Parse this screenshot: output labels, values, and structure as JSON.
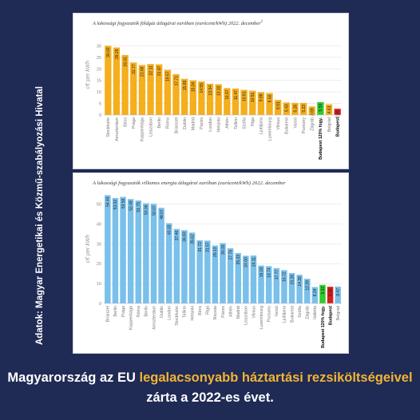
{
  "side_text": "Adatok: Magyar Energetikai és Közmű-szabályozási Hivatal",
  "caption": {
    "part1": "Magyarország az EU ",
    "highlight": "legalacsonyabb háztartási rezsiköltségeivel",
    "part2": " zárta a 2022-es évet."
  },
  "chart_data": [
    {
      "type": "bar",
      "title": "A lakossági fogyasztók földgáz átlagárai euróban (eurócent/kWh) 2022. december",
      "title_note": "1",
      "xlabel": "",
      "ylabel": "c€ per kWh",
      "ylim": [
        0,
        35
      ],
      "yticks": [
        0,
        5,
        10,
        15,
        20,
        25,
        30
      ],
      "grid": true,
      "categories": [
        "Stockholm",
        "Amszterdam",
        "Bécs",
        "Prága",
        "Koppenhága",
        "Lisszabon",
        "Berlin",
        "Róma",
        "Brüsszel",
        "Dublin",
        "Madrid",
        "Párizs",
        "London",
        "Helsinki",
        "Athén",
        "Tallinn",
        "Szófia",
        "Riga",
        "Ljubljana",
        "Luxembourg",
        "Vilnius",
        "Bukarest",
        "Varsó",
        "Pozsony",
        "Zágráb",
        "Budapest 120% fogy.",
        "Belgrád",
        "Budapest"
      ],
      "values": [
        30.02,
        29.28,
        26.01,
        22.77,
        21.68,
        22.11,
        21.97,
        19.57,
        17.71,
        15.69,
        15.04,
        14.55,
        13.54,
        13.33,
        11.67,
        11.47,
        10.91,
        10.51,
        9.88,
        9.5,
        6.51,
        5.43,
        5.26,
        5.23,
        3.69,
        5.59,
        4.63,
        2.69
      ],
      "bar_colors": [
        "#f5ae1c",
        "#f5ae1c",
        "#f5ae1c",
        "#f5ae1c",
        "#f5ae1c",
        "#f5ae1c",
        "#f5ae1c",
        "#f5ae1c",
        "#f5ae1c",
        "#f5ae1c",
        "#f5ae1c",
        "#f5ae1c",
        "#f5ae1c",
        "#f5ae1c",
        "#f5ae1c",
        "#f5ae1c",
        "#f5ae1c",
        "#f5ae1c",
        "#f5ae1c",
        "#f5ae1c",
        "#f5ae1c",
        "#f5ae1c",
        "#f5ae1c",
        "#f5ae1c",
        "#f5ae1c",
        "#2ecc2e",
        "#f5ae1c",
        "#d71d1d"
      ],
      "bold_categories": [
        "Budapest 120% fogy.",
        "Budapest"
      ]
    },
    {
      "type": "bar",
      "title": "A lakossági fogyasztók villamos energia átlagárai euróban (eurócent/kWh) 2022. december",
      "xlabel": "",
      "ylabel": "c€ per kWh",
      "ylim": [
        0,
        55
      ],
      "yticks": [
        0,
        10,
        20,
        30,
        40,
        50
      ],
      "grid": true,
      "categories": [
        "Brüsszel",
        "Berlin",
        "Prága",
        "Koppenhága",
        "Róma",
        "Berlin",
        "Amszterdam",
        "Dublin",
        "London",
        "Stockholm",
        "Tallinn",
        "Helsinki",
        "Bécs",
        "Riga",
        "Nicosia",
        "Párizs",
        "Athén",
        "Madrid",
        "Lisszabon",
        "Vilnius",
        "Luxembourg",
        "Pozsony",
        "Varsó",
        "Ljubljana",
        "Bukarest",
        "Szófia",
        "Zágráb",
        "Valletta",
        "Budapest 120% fogy.",
        "Budapest",
        "Belgrád"
      ],
      "values": [
        54.44,
        53.02,
        53.56,
        52.48,
        51.75,
        50.36,
        50.07,
        48.07,
        40.33,
        37.46,
        36.83,
        35.62,
        31.72,
        31.57,
        29.13,
        30.33,
        27.76,
        25.33,
        24.0,
        24.11,
        19.03,
        18.74,
        17.77,
        16.72,
        15.28,
        14.39,
        12.39,
        8.24,
        9.32,
        8.36,
        8.47
      ],
      "bar_colors": [
        "#79c0eb",
        "#79c0eb",
        "#79c0eb",
        "#79c0eb",
        "#79c0eb",
        "#79c0eb",
        "#79c0eb",
        "#79c0eb",
        "#79c0eb",
        "#79c0eb",
        "#79c0eb",
        "#79c0eb",
        "#79c0eb",
        "#79c0eb",
        "#79c0eb",
        "#79c0eb",
        "#79c0eb",
        "#79c0eb",
        "#79c0eb",
        "#79c0eb",
        "#79c0eb",
        "#79c0eb",
        "#79c0eb",
        "#79c0eb",
        "#79c0eb",
        "#79c0eb",
        "#79c0eb",
        "#79c0eb",
        "#2ecc2e",
        "#d71d1d",
        "#79c0eb"
      ],
      "bold_categories": [
        "Budapest 120% fogy.",
        "Budapest"
      ]
    }
  ]
}
